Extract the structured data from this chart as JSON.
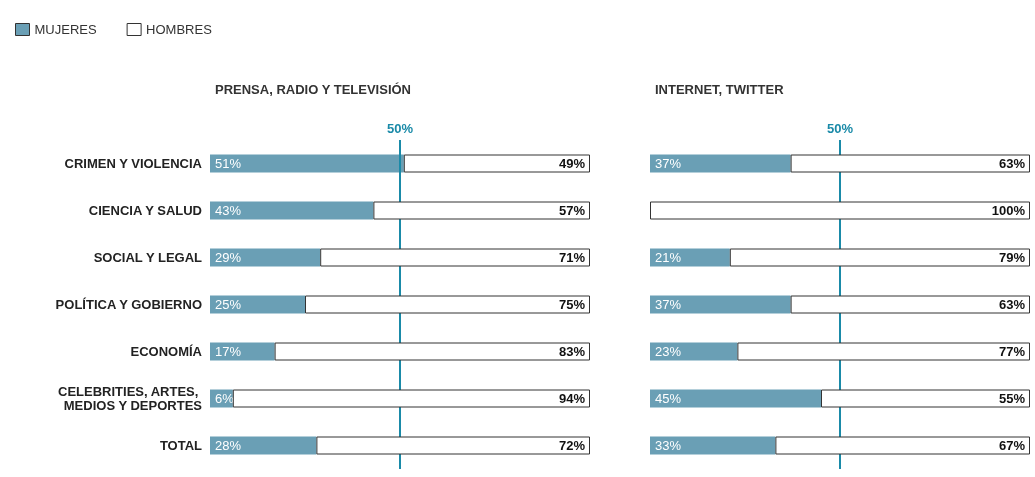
{
  "chart_data": [
    {
      "type": "bar",
      "orientation": "horizontal",
      "stacked": true,
      "title": "PRENSA, RADIO Y TELEVISIÓN",
      "legend": "top left",
      "tick_labels": "y",
      "xlim": [
        0,
        100
      ],
      "categories": [
        "CRIMEN Y VIOLENCIA",
        "CIENCIA Y SALUD",
        "SOCIAL Y LEGAL",
        "POLÍTICA Y GOBIERNO",
        "ECONOMÍA",
        "CELEBRITIES, ARTES, MEDIOS Y DEPORTES",
        "TOTAL"
      ],
      "series": [
        {
          "name": "MUJERES",
          "color": "#6a9fb5",
          "values": [
            51,
            43,
            29,
            25,
            17,
            6,
            28
          ],
          "value_labels": [
            "51%",
            "43%",
            "29%",
            "25%",
            "17%",
            "6%",
            "28%"
          ]
        },
        {
          "name": "HOMBRES",
          "color": "#ffffff",
          "values": [
            49,
            57,
            71,
            75,
            83,
            94,
            72
          ],
          "value_labels": [
            "49%",
            "57%",
            "71%",
            "75%",
            "83%",
            "94%",
            "72%"
          ]
        }
      ],
      "ref_lines": [
        {
          "axis": "x",
          "value": 50,
          "label": "50%",
          "color": "#1a8aa8"
        }
      ]
    },
    {
      "type": "bar",
      "orientation": "horizontal",
      "stacked": true,
      "title": "INTERNET, TWITTER",
      "tick_labels": false,
      "xlim": [
        0,
        100
      ],
      "categories": [
        "CRIMEN Y VIOLENCIA",
        "CIENCIA Y SALUD",
        "SOCIAL Y LEGAL",
        "POLÍTICA Y GOBIERNO",
        "ECONOMÍA",
        "CELEBRITIES, ARTES, MEDIOS Y DEPORTES",
        "TOTAL"
      ],
      "series": [
        {
          "color": "#6a9fb5",
          "values": [
            37,
            0,
            21,
            37,
            23,
            45,
            33
          ],
          "value_labels": [
            "37%",
            null,
            "21%",
            "37%",
            "23%",
            "45%",
            "33%"
          ]
        },
        {
          "color": "#ffffff",
          "values": [
            63,
            100,
            79,
            63,
            77,
            55,
            67
          ],
          "value_labels": [
            "63%",
            "100%",
            "79%",
            "63%",
            "77%",
            "55%",
            "67%"
          ]
        }
      ],
      "ref_lines": [
        {
          "axis": "x",
          "value": 50,
          "label": "50%",
          "color": "#1a8aa8"
        }
      ]
    }
  ]
}
